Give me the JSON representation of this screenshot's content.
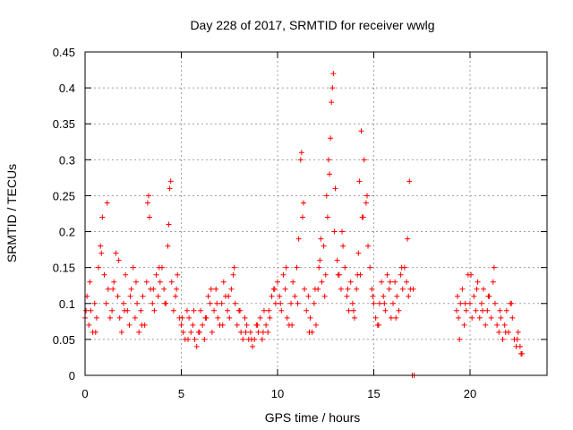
{
  "chart_data": {
    "type": "scatter",
    "title": "Day 228 of 2017, SRMTID for receiver wwlg",
    "xlabel": "GPS time / hours",
    "ylabel": "SRMTID / TECUs",
    "xlim": [
      0,
      24
    ],
    "ylim": [
      0,
      0.45
    ],
    "xticks": [
      0,
      5,
      10,
      15,
      20
    ],
    "yticks": [
      0,
      0.05,
      0.1,
      0.15,
      0.2,
      0.25,
      0.3,
      0.35,
      0.4,
      0.45
    ],
    "xtick_labels": [
      "0",
      "5",
      "10",
      "15",
      "20"
    ],
    "ytick_labels": [
      "0",
      "0.05",
      "0.1",
      "0.15",
      "0.2",
      "0.25",
      "0.3",
      "0.35",
      "0.4",
      "0.45"
    ],
    "grid": true,
    "marker": "+",
    "color": "#ff0000",
    "series": [
      {
        "name": "SRMTID",
        "x": [
          0.0,
          0.1,
          0.2,
          0.3,
          0.4,
          0.5,
          0.6,
          0.7,
          0.8,
          0.9,
          1.0,
          1.1,
          1.2,
          1.3,
          1.4,
          1.5,
          1.6,
          1.7,
          1.8,
          1.9,
          2.0,
          2.1,
          2.2,
          2.3,
          2.4,
          2.5,
          2.6,
          2.7,
          2.8,
          2.9,
          3.0,
          3.1,
          3.2,
          3.3,
          3.4,
          3.5,
          3.6,
          3.7,
          3.8,
          3.9,
          4.0,
          4.1,
          4.2,
          4.3,
          4.4,
          4.5,
          4.6,
          4.7,
          4.8,
          4.9,
          5.0,
          5.1,
          5.2,
          5.3,
          5.4,
          5.5,
          5.6,
          5.7,
          5.8,
          5.9,
          6.0,
          6.1,
          6.2,
          6.3,
          6.4,
          6.5,
          6.6,
          6.7,
          6.8,
          6.9,
          7.0,
          7.1,
          7.2,
          7.3,
          7.4,
          7.5,
          7.6,
          7.7,
          7.8,
          7.9,
          8.0,
          8.1,
          8.2,
          8.3,
          8.4,
          8.5,
          8.6,
          8.7,
          8.8,
          8.9,
          9.0,
          9.1,
          9.2,
          9.3,
          9.4,
          9.5,
          9.6,
          9.7,
          9.8,
          9.9,
          10.0,
          10.1,
          10.2,
          10.3,
          10.4,
          10.5,
          10.6,
          10.7,
          10.8,
          10.9,
          11.0,
          11.1,
          11.2,
          11.3,
          11.4,
          11.5,
          11.6,
          11.7,
          11.8,
          11.9,
          12.0,
          12.1,
          12.2,
          12.3,
          12.4,
          12.5,
          12.6,
          12.7,
          12.8,
          12.9,
          13.0,
          13.1,
          13.2,
          13.3,
          13.4,
          13.5,
          13.6,
          13.7,
          13.8,
          13.9,
          14.0,
          14.1,
          14.2,
          14.3,
          14.4,
          14.5,
          14.6,
          14.7,
          14.8,
          14.9,
          15.0,
          15.1,
          15.2,
          15.3,
          15.4,
          15.5,
          15.6,
          15.7,
          15.8,
          15.9,
          16.0,
          16.1,
          16.2,
          16.3,
          16.4,
          16.5,
          16.6,
          16.7,
          16.8,
          16.9,
          17.0,
          17.1,
          19.3,
          19.35,
          19.4,
          19.5,
          19.6,
          19.7,
          19.8,
          19.9,
          20.0,
          20.1,
          20.2,
          20.3,
          20.4,
          20.5,
          20.6,
          20.7,
          20.8,
          20.9,
          21.0,
          21.1,
          21.2,
          21.3,
          21.4,
          21.5,
          21.6,
          21.7,
          21.8,
          21.9,
          22.0,
          22.1,
          22.2,
          22.3,
          22.4,
          22.5,
          22.6,
          22.7,
          0.05,
          0.25,
          0.55,
          0.85,
          1.15,
          1.45,
          1.75,
          2.05,
          2.35,
          2.65,
          2.95,
          3.25,
          3.35,
          3.55,
          3.85,
          4.15,
          4.35,
          4.45,
          4.75,
          5.05,
          5.35,
          5.65,
          5.95,
          6.25,
          6.55,
          6.85,
          7.15,
          7.45,
          7.75,
          8.05,
          8.35,
          8.65,
          8.95,
          9.25,
          9.55,
          9.85,
          10.15,
          10.45,
          10.75,
          11.05,
          11.25,
          11.35,
          11.65,
          11.95,
          12.15,
          12.25,
          12.45,
          12.55,
          12.65,
          12.75,
          12.85,
          12.95,
          13.15,
          13.35,
          13.65,
          13.95,
          14.15,
          14.25,
          14.35,
          14.45,
          14.65,
          14.95,
          15.25,
          15.55,
          15.85,
          16.15,
          16.45,
          16.75,
          16.85,
          17.05,
          19.45,
          19.75,
          20.05,
          20.35,
          20.65,
          20.95,
          21.25,
          21.55,
          21.85,
          22.15,
          22.45,
          22.65
        ],
        "y": [
          0.08,
          0.11,
          0.07,
          0.09,
          0.06,
          0.1,
          0.08,
          0.15,
          0.18,
          0.22,
          0.14,
          0.1,
          0.12,
          0.08,
          0.09,
          0.13,
          0.17,
          0.11,
          0.08,
          0.06,
          0.1,
          0.14,
          0.09,
          0.07,
          0.12,
          0.15,
          0.08,
          0.1,
          0.06,
          0.09,
          0.11,
          0.07,
          0.13,
          0.25,
          0.12,
          0.1,
          0.09,
          0.14,
          0.11,
          0.13,
          0.15,
          0.12,
          0.1,
          0.18,
          0.26,
          0.13,
          0.09,
          0.11,
          0.14,
          0.08,
          0.07,
          0.06,
          0.05,
          0.09,
          0.08,
          0.06,
          0.07,
          0.05,
          0.04,
          0.06,
          0.09,
          0.07,
          0.05,
          0.08,
          0.11,
          0.1,
          0.06,
          0.09,
          0.12,
          0.08,
          0.07,
          0.1,
          0.13,
          0.11,
          0.09,
          0.08,
          0.12,
          0.14,
          0.1,
          0.07,
          0.09,
          0.06,
          0.05,
          0.08,
          0.07,
          0.05,
          0.06,
          0.04,
          0.05,
          0.07,
          0.06,
          0.08,
          0.05,
          0.09,
          0.07,
          0.06,
          0.08,
          0.11,
          0.12,
          0.1,
          0.13,
          0.11,
          0.09,
          0.14,
          0.12,
          0.08,
          0.07,
          0.1,
          0.13,
          0.11,
          0.15,
          0.19,
          0.3,
          0.22,
          0.12,
          0.09,
          0.11,
          0.08,
          0.06,
          0.1,
          0.07,
          0.12,
          0.16,
          0.13,
          0.18,
          0.14,
          0.22,
          0.28,
          0.38,
          0.42,
          0.26,
          0.16,
          0.14,
          0.12,
          0.18,
          0.15,
          0.11,
          0.09,
          0.13,
          0.1,
          0.08,
          0.12,
          0.17,
          0.14,
          0.22,
          0.3,
          0.24,
          0.18,
          0.15,
          0.12,
          0.1,
          0.08,
          0.07,
          0.1,
          0.13,
          0.11,
          0.09,
          0.14,
          0.12,
          0.08,
          0.1,
          0.13,
          0.11,
          0.09,
          0.14,
          0.12,
          0.15,
          0.13,
          0.11,
          0.12,
          0.0,
          0.0,
          0.09,
          0.11,
          0.08,
          0.1,
          0.12,
          0.07,
          0.09,
          0.14,
          0.1,
          0.08,
          0.11,
          0.09,
          0.13,
          0.08,
          0.1,
          0.12,
          0.07,
          0.09,
          0.11,
          0.08,
          0.13,
          0.1,
          0.07,
          0.06,
          0.08,
          0.05,
          0.07,
          0.09,
          0.06,
          0.1,
          0.08,
          0.05,
          0.04,
          0.06,
          0.04,
          0.03,
          0.09,
          0.13,
          0.06,
          0.17,
          0.24,
          0.12,
          0.16,
          0.09,
          0.11,
          0.13,
          0.07,
          0.24,
          0.22,
          0.12,
          0.15,
          0.1,
          0.21,
          0.27,
          0.12,
          0.08,
          0.05,
          0.09,
          0.06,
          0.08,
          0.12,
          0.1,
          0.07,
          0.11,
          0.15,
          0.09,
          0.06,
          0.05,
          0.07,
          0.06,
          0.09,
          0.12,
          0.1,
          0.15,
          0.07,
          0.1,
          0.31,
          0.24,
          0.06,
          0.12,
          0.15,
          0.19,
          0.11,
          0.25,
          0.3,
          0.33,
          0.4,
          0.2,
          0.14,
          0.2,
          0.12,
          0.09,
          0.14,
          0.27,
          0.34,
          0.22,
          0.25,
          0.11,
          0.07,
          0.1,
          0.13,
          0.08,
          0.15,
          0.19,
          0.27,
          0.12,
          0.05,
          0.1,
          0.14,
          0.12,
          0.09,
          0.11,
          0.15,
          0.09,
          0.06,
          0.1,
          0.05,
          0.03
        ]
      }
    ]
  }
}
